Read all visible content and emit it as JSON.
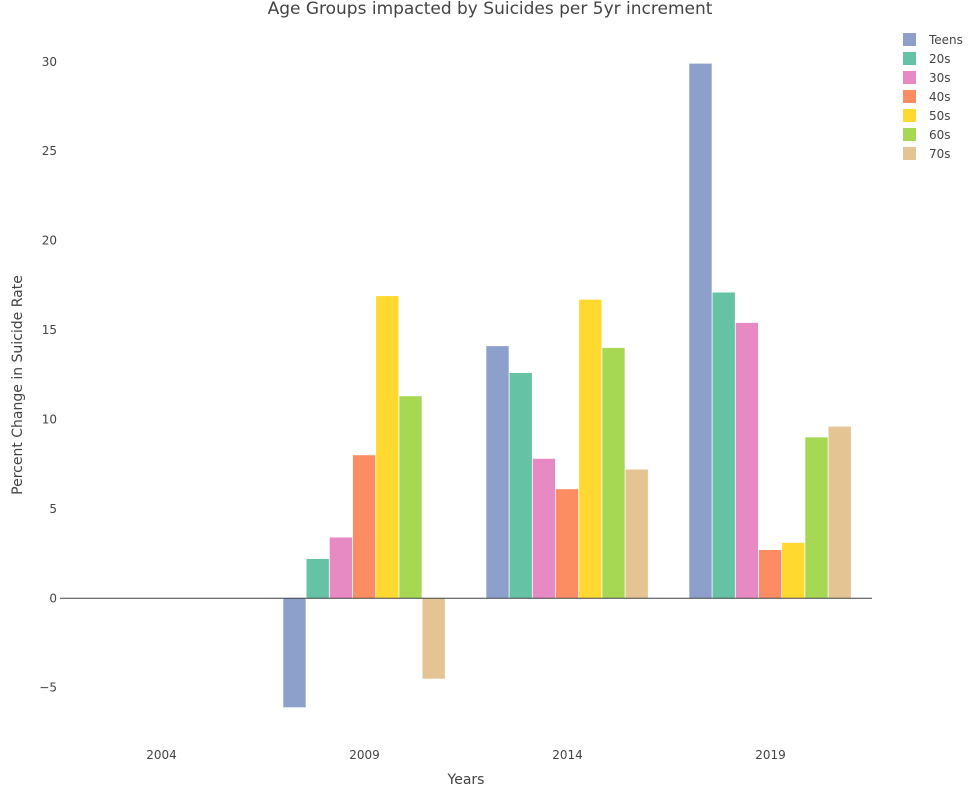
{
  "chart_data": {
    "type": "bar",
    "title": "Age Groups impacted by Suicides per 5yr increment",
    "xlabel": "Years",
    "ylabel": "Percent Change in Suicide Rate",
    "categories": [
      "2004",
      "2009",
      "2014",
      "2019"
    ],
    "ylim": [
      -7.2,
      31.5
    ],
    "yticks": [
      -5,
      0,
      5,
      10,
      15,
      20,
      25,
      30
    ],
    "ytick_labels": [
      "−5",
      "0",
      "5",
      "10",
      "15",
      "20",
      "25",
      "30"
    ],
    "grid": false,
    "legend_position": "top-right",
    "series": [
      {
        "name": "Teens",
        "color": "#8da0cb",
        "values": [
          0,
          -6.1,
          14.1,
          29.9
        ]
      },
      {
        "name": "20s",
        "color": "#66c2a5",
        "values": [
          0,
          2.2,
          12.6,
          17.1
        ]
      },
      {
        "name": "30s",
        "color": "#e78ac3",
        "values": [
          0,
          3.4,
          7.8,
          15.4
        ]
      },
      {
        "name": "40s",
        "color": "#fc8d62",
        "values": [
          0,
          8.0,
          6.1,
          2.7
        ]
      },
      {
        "name": "50s",
        "color": "#ffd92f",
        "values": [
          0,
          16.9,
          16.7,
          3.1
        ]
      },
      {
        "name": "60s",
        "color": "#a6d854",
        "values": [
          0,
          11.3,
          14.0,
          9.0
        ]
      },
      {
        "name": "70s",
        "color": "#e5c494",
        "values": [
          0,
          -4.5,
          7.2,
          9.6
        ]
      }
    ]
  }
}
